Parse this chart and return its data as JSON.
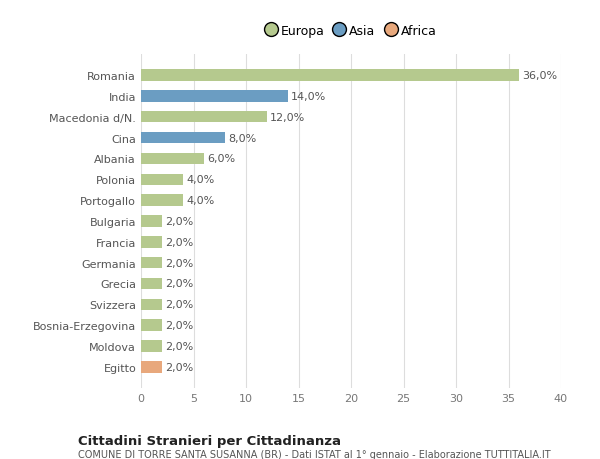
{
  "categories": [
    "Romania",
    "India",
    "Macedonia d/N.",
    "Cina",
    "Albania",
    "Polonia",
    "Portogallo",
    "Bulgaria",
    "Francia",
    "Germania",
    "Grecia",
    "Svizzera",
    "Bosnia-Erzegovina",
    "Moldova",
    "Egitto"
  ],
  "values": [
    36.0,
    14.0,
    12.0,
    8.0,
    6.0,
    4.0,
    4.0,
    2.0,
    2.0,
    2.0,
    2.0,
    2.0,
    2.0,
    2.0,
    2.0
  ],
  "colors": [
    "#b5c98e",
    "#6b9dc2",
    "#b5c98e",
    "#6b9dc2",
    "#b5c98e",
    "#b5c98e",
    "#b5c98e",
    "#b5c98e",
    "#b5c98e",
    "#b5c98e",
    "#b5c98e",
    "#b5c98e",
    "#b5c98e",
    "#b5c98e",
    "#e8a87c"
  ],
  "continents": [
    "Europa",
    "Asia",
    "Europa",
    "Asia",
    "Europa",
    "Europa",
    "Europa",
    "Europa",
    "Europa",
    "Europa",
    "Europa",
    "Europa",
    "Europa",
    "Europa",
    "Africa"
  ],
  "legend_labels": [
    "Europa",
    "Asia",
    "Africa"
  ],
  "legend_colors": [
    "#b5c98e",
    "#6b9dc2",
    "#e8a87c"
  ],
  "xlim": [
    0,
    40
  ],
  "xticks": [
    0,
    5,
    10,
    15,
    20,
    25,
    30,
    35,
    40
  ],
  "title1": "Cittadini Stranieri per Cittadinanza",
  "title2": "COMUNE DI TORRE SANTA SUSANNA (BR) - Dati ISTAT al 1° gennaio - Elaborazione TUTTITALIA.IT",
  "bg_color": "#ffffff",
  "grid_color": "#dddddd",
  "bar_label_fontsize": 8.0,
  "tick_fontsize": 8.0,
  "bar_height": 0.55
}
